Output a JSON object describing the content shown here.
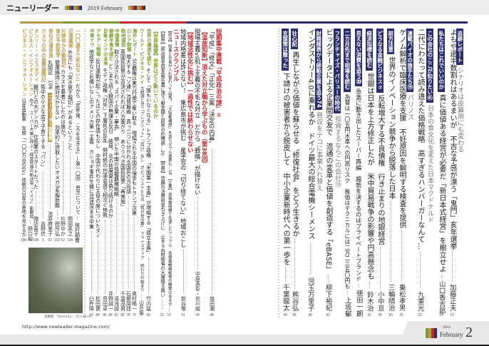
{
  "header": {
    "title": "ニューリーダー",
    "issue": "2019 February"
  },
  "colors": {
    "gold": "#b89a4a",
    "green": "#7d9a2e",
    "red": "#c0282d",
    "navy": "#2a2d6c",
    "grey_text": "#777777"
  },
  "sections": {
    "navy": [
      {
        "tag": "追跡レポート",
        "text": "シナリオは皮算用にも変わる",
        "style": "sub"
      },
      {
        "text": "よもや過半数割れはあるまいが　不吉な予感が漂う「鬼門」亥年選挙",
        "author": "加藤正夫",
        "page": "10"
      },
      {
        "tag": "私たちはこれでいいのか",
        "text": "真に価値ある経営が必要だ「新日本式経営」を樹立せよ",
        "author": "山口香吉郎",
        "page": "14"
      },
      {
        "tag": "この会社のここが知りたい㊶",
        "text": "日本の食文化を変えた日本マクドナルド",
        "style": "sub"
      },
      {
        "text": "二代にわたって読み違えた価格戦略　高すぎるハンバーガーなんて…",
        "author": "九重光",
        "page": "22"
      },
      {
        "tag": "連載バイオの旗手たち⑲",
        "text": "パリノス",
        "style": "sub"
      },
      {
        "text": "ゲノム解析で臨床医療を支援　不妊原因を解明する検査を提供",
        "author": "乗松孝男",
        "page": "26"
      },
      {
        "tag": "前方注意",
        "text": "世界のイノベーション競争から脱落した日本",
        "author": "三輪晴治",
        "page": "30"
      },
      {
        "tag": "どうなる金融ビジネス⑦",
        "text": "反転増大する不良債権　行き止まりの地銀経営",
        "author": "小中亘",
        "page": "34"
      },
      {
        "tag": "経済指標を読む",
        "text": "世銀は日本を上方修正したが　米中貿易戦争の影響や円高懸念も",
        "author": "鈴木治",
        "page": "32"
      },
      {
        "tag": "見えない消費を追う⑳",
        "text": "急激に動き出したスーパー再編　趨勢を決するのはプライベートブランド",
        "author": "徳田一朗",
        "page": "36"
      },
      {
        "tag": "二カ月先まで相場を読む",
        "text": "為替は一〇五円水準への円高リスク　株価はテクニカルには二万二三五〇円も",
        "author": "上坂郁",
        "page": "38"
      },
      {
        "tag": "フランチャイズ・バリューの時代",
        "text": "投資するならこの会社⑲",
        "style": "sub"
      },
      {
        "text": "ビッグデータによる企業間交友で　流通の変革と価値を創造する「eBASE」",
        "author": "柳下裕紀",
        "page": "42"
      },
      {
        "tag": "財務諸表から師範企業を追う74",
        "text": "買収をテコに事業入れ替え",
        "style": "sub"
      },
      {
        "text": "インダストリー4.0に乗れるか　ドイツ最大の総合電機シーメンス",
        "author": "児玉万里子",
        "page": "40"
      },
      {
        "tag": "壮心記",
        "text": "再生しながら価値を蘇らせる〝修復社会〟をどう生きるか",
        "author": "熊谷弘",
        "page": "96"
      },
      {
        "tag": "支援策は整った",
        "text": "下請けの被害者から脱皮して　中小企業新時代への第一歩を",
        "author": "千葉龍太",
        "page": "44"
      }
    ],
    "red": [
      {
        "text": "短期集中連載「平成政治の謎」①",
        "style": "head"
      },
      {
        "text": "「平成」「修文」「正化」三案〝決定の内幕〟",
        "author": "塩田潮",
        "page": "48"
      },
      {
        "text": "【温故知新】消えた対立軸から学ぶもの（第38回）",
        "style": "head"
      },
      {
        "text": "現場主義vs机上主義の不毛な対立　だから〝戦略〟が描けない",
        "author": "中原英臣・佐川峻",
        "page": "44"
      },
      {
        "text": "【地域活性化に挑む】一過性では終わらせない",
        "style": "head"
      },
      {
        "text": "地域内格差は許さない！　東広島市が挑む　産学官の「切り捨てない」地域おこし",
        "author": "新谷敬",
        "page": "61"
      },
      {
        "text": "ニュースクランブル",
        "style": "head"
      },
      {
        "text": "【政治】知事と市長が入れ替わって出馬？「大阪都構想」を巡りダブル選挙も…18　【企業】高価格路線で失速したアップル　低価格戦略転換の勝算はあるか",
        "style": "small",
        "page": "19"
      },
      {
        "text": "【財界】政治資金収支報告書に漂う献金額と財界の危機感…20　【官界】悲願の消費税率引き上げに　止まらぬ財務省の大盤振る舞い",
        "style": "small",
        "page": "21"
      }
    ],
    "green": [
      {
        "text": "【世界展望】世界はどう動いているのか",
        "style": "head"
      },
      {
        "tag": "世界の潮流を読む",
        "text": "そして「誰もいなくなる」トランプ政権　「米国第一主義」が増幅する「孤立主義」",
        "author": "竹内猛",
        "page": "68"
      },
      {
        "tag": "ワールド・ビジネス・アイ",
        "text": "大統領とEU「ブレグジット」「出口」なし　ポピュリストたちの「我が世の春」　フェイスブック　終わりの始まり",
        "author": "山井俊",
        "page": "72"
      },
      {
        "tag": "海外レポート",
        "text": "5G覇権は実力行使で奪い取る　増幅される中国の強歩もトランプ次第",
        "author": "奥村皓一",
        "page": "76"
      },
      {
        "tag": "ロシア制御",
        "text": "増大する「ソ連」流情報戦　真っ二つに分かれる国民の方向感",
        "author": "石郷岡建",
        "page": "78"
      },
      {
        "tag": "欧州通信",
        "text": "英国民投票が否決されれば八方塞がり　ありうべき国民投票「再実施」",
        "author": "千葉茂男",
        "page": "80"
      },
      {
        "tag": "中国事情",
        "text": "取り沙汰される〝スパイ企業・華為〟　傾いた中国の情報覇権戦略",
        "author": "湯浅誠",
        "page": "82"
      },
      {
        "tag": "朝鮮半島を読む",
        "text": "どこまで続く韓国の無謀な反日　結局、北の核廃棄は偽り続けるのか",
        "author": "井野誠一",
        "page": "84"
      },
      {
        "tag": "巨象インドの未来",
        "text": "モディ政権「対外」下層民の反乱　野村統の州議会選で相次ぐ惨敗",
        "author": "島田卓",
        "page": "86"
      },
      {
        "tag": "アセアン情報",
        "text": "反日運動が起こったほどの存在感もなし　中国が代わりに主役の座についたタイ",
        "author": "松田健",
        "page": "88"
      },
      {
        "tag": "中東ナウ",
        "text": "地政学などお構いなしのアメリカ第一主義　カショギ事件を機に混迷深まる中東",
        "author": "臼杵陽",
        "page": "90"
      }
    ],
    "gold": [
      {
        "tag": "一〇〇歳まで死ねない!!",
        "text": "だから「定年後、ころを生きる」―第一〇回　晋次について",
        "author": "植村鞆音",
        "page": "98"
      },
      {
        "tag": "辺境薬師",
        "text": "外交にも「突き放す親切」があるということ",
        "author": "関岡英之",
        "page": "108"
      },
      {
        "tag": "片野ゆかの動物記",
        "text": "カラスを悪者にしたのは誰か？",
        "author": "片野ゆか",
        "page": "52"
      },
      {
        "tag": "食の予防医学",
        "text": "健康維持に絶対欠かせない　効率的に摂取したいオメガ3系脂肪酸",
        "author": "税所弘",
        "page": "102"
      },
      {
        "tag": "俳句の漫歩道",
        "text": "丸岡忍　106",
        "box": "ニューリーダー図書館",
        "author": "池原麻里子",
        "page": "92"
      },
      {
        "tag": "カメラの中の風景歳時記",
        "text": "街中の小さな店で子育てする「パン」",
        "author": "吉野信",
        "page": "3"
      },
      {
        "tag": "オンリー・イエスタデイ",
        "text": "銀行との大ゲンカが　社長業のスタートだった",
        "author": "諏訪貴子",
        "page": "108"
      },
      {
        "tag": "ビジネス・インフォメーション",
        "text": "佐人　スーパー大衆に呼ぶ・経営資源の新活用「イメゾ」新開発",
        "author": "野口均",
        "page": "95"
      },
      {
        "tag": "ビジネス・インフォメーション",
        "text": "日産自動車　年間「一〇〇万台のEV」技術の日産の意地を見せるか",
        "page": "104"
      }
    ]
  },
  "cover": {
    "caption": "表紙絵 『Serenity』 55×46cm"
  },
  "footer": {
    "url": "http://www.newleader-magazine.com/",
    "year": "2019",
    "month": "February",
    "page_number": "2"
  }
}
